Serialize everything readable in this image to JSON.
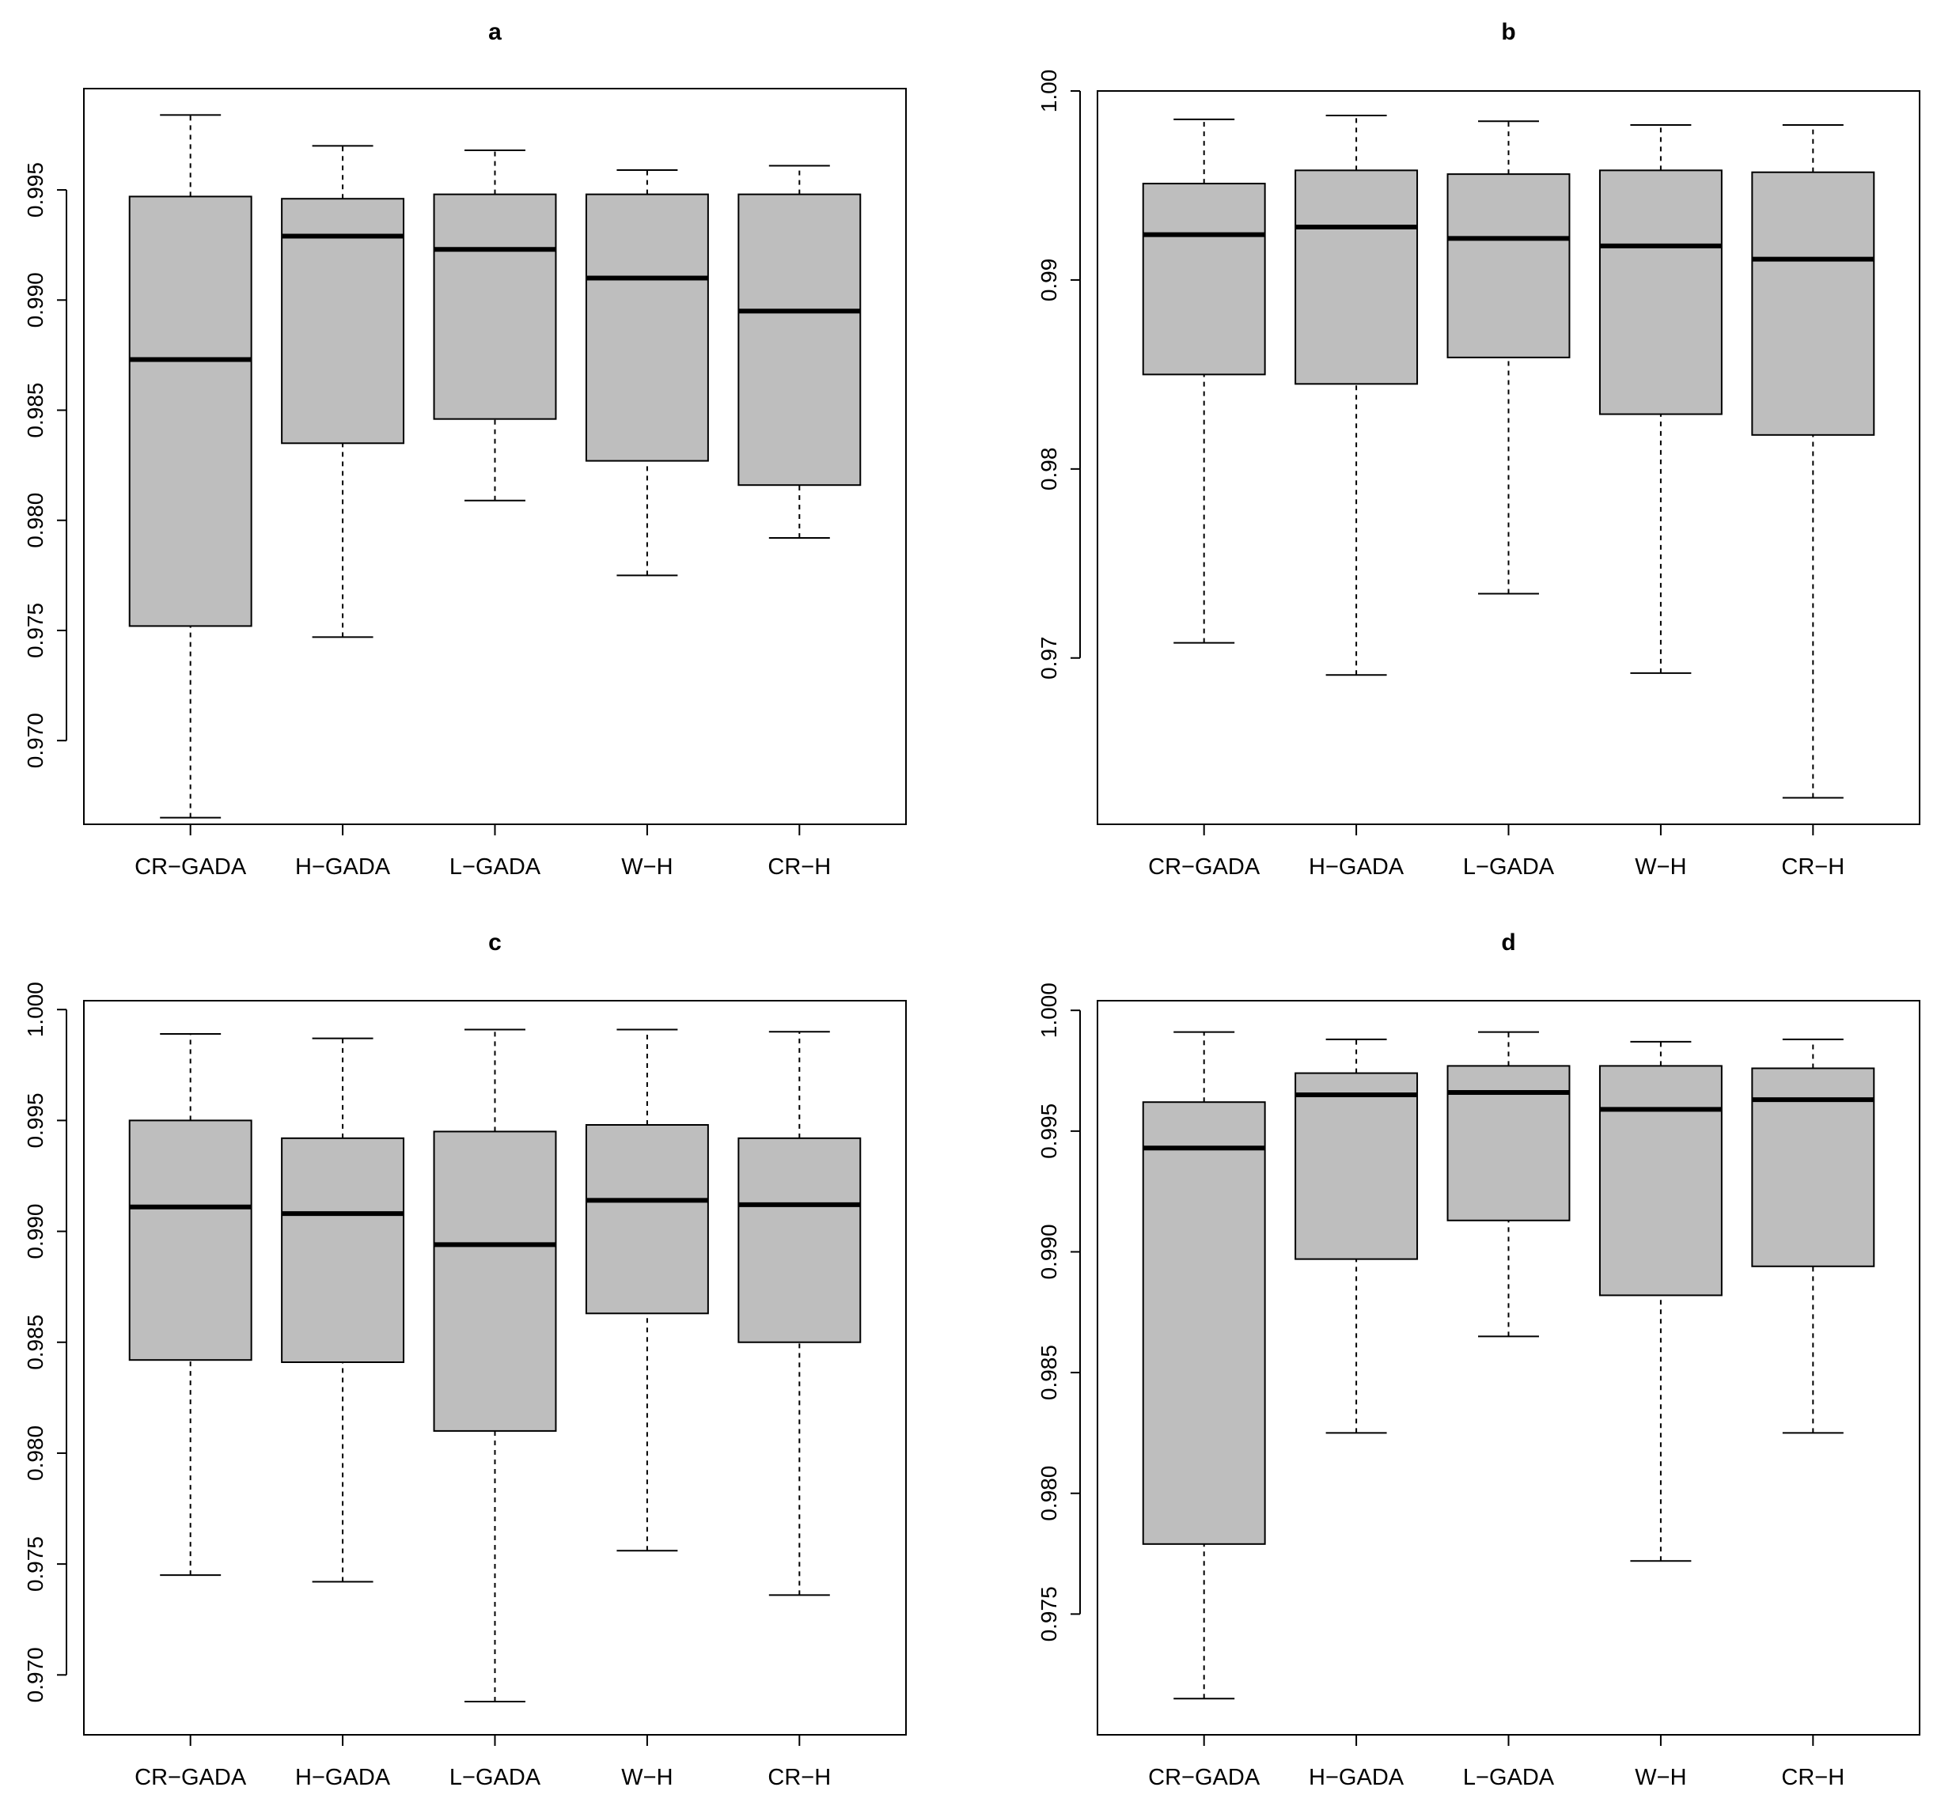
{
  "chart_data": [
    {
      "type": "boxplot",
      "title": "a",
      "categories": [
        "CR−GADA",
        "H−GADA",
        "L−GADA",
        "W−H",
        "CR−H"
      ],
      "ylim": [
        0.9662,
        0.9996
      ],
      "yticks": [
        0.97,
        0.975,
        0.98,
        0.985,
        0.99,
        0.995
      ],
      "ytick_labels": [
        "0.970",
        "0.975",
        "0.980",
        "0.985",
        "0.990",
        "0.995"
      ],
      "boxes": [
        {
          "min": 0.9665,
          "q1": 0.9752,
          "median": 0.9873,
          "q3": 0.9947,
          "max": 0.9984
        },
        {
          "min": 0.9747,
          "q1": 0.9835,
          "median": 0.9929,
          "q3": 0.9946,
          "max": 0.997
        },
        {
          "min": 0.9809,
          "q1": 0.9846,
          "median": 0.9923,
          "q3": 0.9948,
          "max": 0.9968
        },
        {
          "min": 0.9775,
          "q1": 0.9827,
          "median": 0.991,
          "q3": 0.9948,
          "max": 0.9959
        },
        {
          "min": 0.9792,
          "q1": 0.9816,
          "median": 0.9895,
          "q3": 0.9948,
          "max": 0.9961
        }
      ]
    },
    {
      "type": "boxplot",
      "title": "b",
      "categories": [
        "CR−GADA",
        "H−GADA",
        "L−GADA",
        "W−H",
        "CR−H"
      ],
      "ylim": [
        0.9612,
        1.0
      ],
      "yticks": [
        0.97,
        0.98,
        0.99,
        1.0
      ],
      "ytick_labels": [
        "0.97",
        "0.98",
        "0.99",
        "1.00"
      ],
      "boxes": [
        {
          "min": 0.9708,
          "q1": 0.985,
          "median": 0.9924,
          "q3": 0.9951,
          "max": 0.9985
        },
        {
          "min": 0.9691,
          "q1": 0.9845,
          "median": 0.9928,
          "q3": 0.9958,
          "max": 0.9987
        },
        {
          "min": 0.9734,
          "q1": 0.9859,
          "median": 0.9922,
          "q3": 0.9956,
          "max": 0.9984
        },
        {
          "min": 0.9692,
          "q1": 0.9829,
          "median": 0.9918,
          "q3": 0.9958,
          "max": 0.9982
        },
        {
          "min": 0.9626,
          "q1": 0.9818,
          "median": 0.9911,
          "q3": 0.9957,
          "max": 0.9982
        }
      ]
    },
    {
      "type": "boxplot",
      "title": "c",
      "categories": [
        "CR−GADA",
        "H−GADA",
        "L−GADA",
        "W−H",
        "CR−H"
      ],
      "ylim": [
        0.9673,
        1.0004
      ],
      "yticks": [
        0.97,
        0.975,
        0.98,
        0.985,
        0.99,
        0.995,
        1.0
      ],
      "ytick_labels": [
        "0.970",
        "0.975",
        "0.980",
        "0.985",
        "0.990",
        "0.995",
        "1.000"
      ],
      "boxes": [
        {
          "min": 0.9745,
          "q1": 0.9842,
          "median": 0.9911,
          "q3": 0.995,
          "max": 0.9989
        },
        {
          "min": 0.9742,
          "q1": 0.9841,
          "median": 0.9908,
          "q3": 0.9942,
          "max": 0.9987
        },
        {
          "min": 0.9688,
          "q1": 0.981,
          "median": 0.9894,
          "q3": 0.9945,
          "max": 0.9991
        },
        {
          "min": 0.9756,
          "q1": 0.9863,
          "median": 0.9914,
          "q3": 0.9948,
          "max": 0.9991
        },
        {
          "min": 0.9736,
          "q1": 0.985,
          "median": 0.9912,
          "q3": 0.9942,
          "max": 0.999
        }
      ]
    },
    {
      "type": "boxplot",
      "title": "d",
      "categories": [
        "CR−GADA",
        "H−GADA",
        "L−GADA",
        "W−H",
        "CR−H"
      ],
      "ylim": [
        0.97,
        1.0004
      ],
      "yticks": [
        0.975,
        0.98,
        0.985,
        0.99,
        0.995,
        1.0
      ],
      "ytick_labels": [
        "0.975",
        "0.980",
        "0.985",
        "0.990",
        "0.995",
        "1.000"
      ],
      "boxes": [
        {
          "min": 0.9715,
          "q1": 0.9779,
          "median": 0.9943,
          "q3": 0.9962,
          "max": 0.9991
        },
        {
          "min": 0.9825,
          "q1": 0.9897,
          "median": 0.9965,
          "q3": 0.9974,
          "max": 0.9988
        },
        {
          "min": 0.9865,
          "q1": 0.9913,
          "median": 0.9966,
          "q3": 0.9977,
          "max": 0.9991
        },
        {
          "min": 0.9772,
          "q1": 0.9882,
          "median": 0.9959,
          "q3": 0.9977,
          "max": 0.9987
        },
        {
          "min": 0.9825,
          "q1": 0.9894,
          "median": 0.9963,
          "q3": 0.9976,
          "max": 0.9988
        }
      ]
    }
  ]
}
